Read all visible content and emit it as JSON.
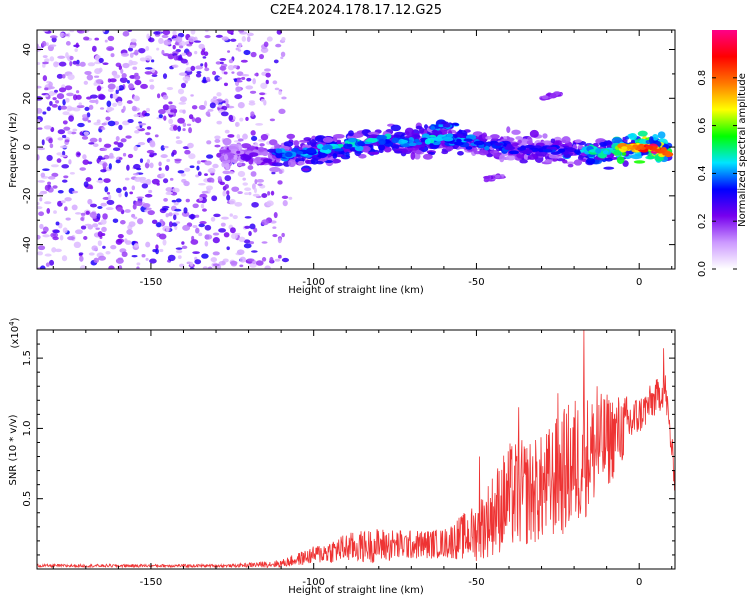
{
  "title": "C2E4.2024.178.17.12.G25",
  "colors": {
    "snr_line": "#ee3333",
    "axis": "#000000"
  },
  "chart_data": [
    {
      "type": "heatmap",
      "xlabel": "Height of straight line (km)",
      "ylabel": "Frequency (Hz)",
      "xlim": [
        -185,
        11
      ],
      "ylim": [
        -50,
        48
      ],
      "x_ticks": [
        -150,
        -100,
        -50,
        0
      ],
      "x_tick_labels": [
        "-150",
        "-100",
        "-50",
        "0"
      ],
      "y_ticks": [
        -40,
        -20,
        0,
        20,
        40
      ],
      "y_tick_labels": [
        "-40",
        "-20",
        "0",
        "20",
        "40"
      ],
      "colorbar": {
        "label": "Normalized spectral amplitude",
        "range": [
          0,
          1
        ],
        "ticks": [
          0.0,
          0.2,
          0.4,
          0.6,
          0.8
        ],
        "tick_labels": [
          "0.0",
          "0.2",
          "0.4",
          "0.6",
          "0.8"
        ],
        "colormap": [
          "#ffffff",
          "#cc99ff",
          "#7700ee",
          "#0000ff",
          "#00e5ff",
          "#00ff00",
          "#ffff00",
          "#ff7700",
          "#ff0000",
          "#ff0088"
        ]
      },
      "noise_region": {
        "x_range": [
          -185,
          -115
        ],
        "y_range": [
          -50,
          48
        ]
      },
      "ridge": [
        {
          "x": -128,
          "y": -4,
          "amp": 0.25
        },
        {
          "x": -110,
          "y": -3,
          "amp": 0.35
        },
        {
          "x": -100,
          "y": -2,
          "amp": 0.38
        },
        {
          "x": -90,
          "y": 1,
          "amp": 0.42
        },
        {
          "x": -80,
          "y": 3,
          "amp": 0.4
        },
        {
          "x": -70,
          "y": 2,
          "amp": 0.38
        },
        {
          "x": -60,
          "y": 4,
          "amp": 0.4
        },
        {
          "x": -50,
          "y": 1,
          "amp": 0.35
        },
        {
          "x": -40,
          "y": 0,
          "amp": 0.32
        },
        {
          "x": -30,
          "y": -1,
          "amp": 0.3
        },
        {
          "x": -20,
          "y": -2,
          "amp": 0.35
        },
        {
          "x": -10,
          "y": -2,
          "amp": 0.5
        },
        {
          "x": -3,
          "y": 0,
          "amp": 0.75
        },
        {
          "x": 3,
          "y": 0,
          "amp": 0.85
        },
        {
          "x": 9,
          "y": -3,
          "amp": 0.8
        }
      ],
      "secondary_features": [
        {
          "x": [
            -64,
            -56
          ],
          "y": [
            8,
            9
          ],
          "amp": 0.4
        },
        {
          "x": [
            -30,
            -24
          ],
          "y": [
            20,
            22
          ],
          "amp": 0.2
        },
        {
          "x": [
            -47,
            -42
          ],
          "y": [
            -13,
            -12
          ],
          "amp": 0.2
        }
      ]
    },
    {
      "type": "line",
      "xlabel": "Height of straight line (km)",
      "ylabel": "SNR (10 * v/v)",
      "y_multiplier": "(x10",
      "y_multiplier_exp": "4",
      "y_multiplier_close": ")",
      "xlim": [
        -185,
        11
      ],
      "ylim": [
        0,
        17000
      ],
      "x_ticks": [
        -150,
        -100,
        -50,
        0
      ],
      "x_tick_labels": [
        "-150",
        "-100",
        "-50",
        "0"
      ],
      "y_ticks": [
        5000,
        10000,
        15000
      ],
      "y_tick_labels": [
        "0.5",
        "1.0",
        "1.5"
      ],
      "envelope": [
        {
          "x": -185,
          "base": 200,
          "amp": 150
        },
        {
          "x": -125,
          "base": 200,
          "amp": 150
        },
        {
          "x": -110,
          "base": 300,
          "amp": 400
        },
        {
          "x": -100,
          "base": 800,
          "amp": 900
        },
        {
          "x": -90,
          "base": 1200,
          "amp": 1500
        },
        {
          "x": -80,
          "base": 1300,
          "amp": 1800
        },
        {
          "x": -70,
          "base": 1400,
          "amp": 1500
        },
        {
          "x": -60,
          "base": 1500,
          "amp": 1500
        },
        {
          "x": -50,
          "base": 2000,
          "amp": 3000
        },
        {
          "x": -40,
          "base": 4000,
          "amp": 5500
        },
        {
          "x": -30,
          "base": 4500,
          "amp": 5500
        },
        {
          "x": -20,
          "base": 6000,
          "amp": 7000
        },
        {
          "x": -10,
          "base": 8000,
          "amp": 5000
        },
        {
          "x": 0,
          "base": 10500,
          "amp": 2000
        },
        {
          "x": 8,
          "base": 12500,
          "amp": 1800
        },
        {
          "x": 11,
          "base": 6000,
          "amp": 1500
        }
      ],
      "peaks": [
        {
          "x": -49,
          "y": 8000
        },
        {
          "x": -37,
          "y": 11500
        },
        {
          "x": -25,
          "y": 12500
        },
        {
          "x": -17,
          "y": 17000
        },
        {
          "x": -13,
          "y": 13000
        },
        {
          "x": 7.5,
          "y": 15700
        }
      ]
    }
  ]
}
